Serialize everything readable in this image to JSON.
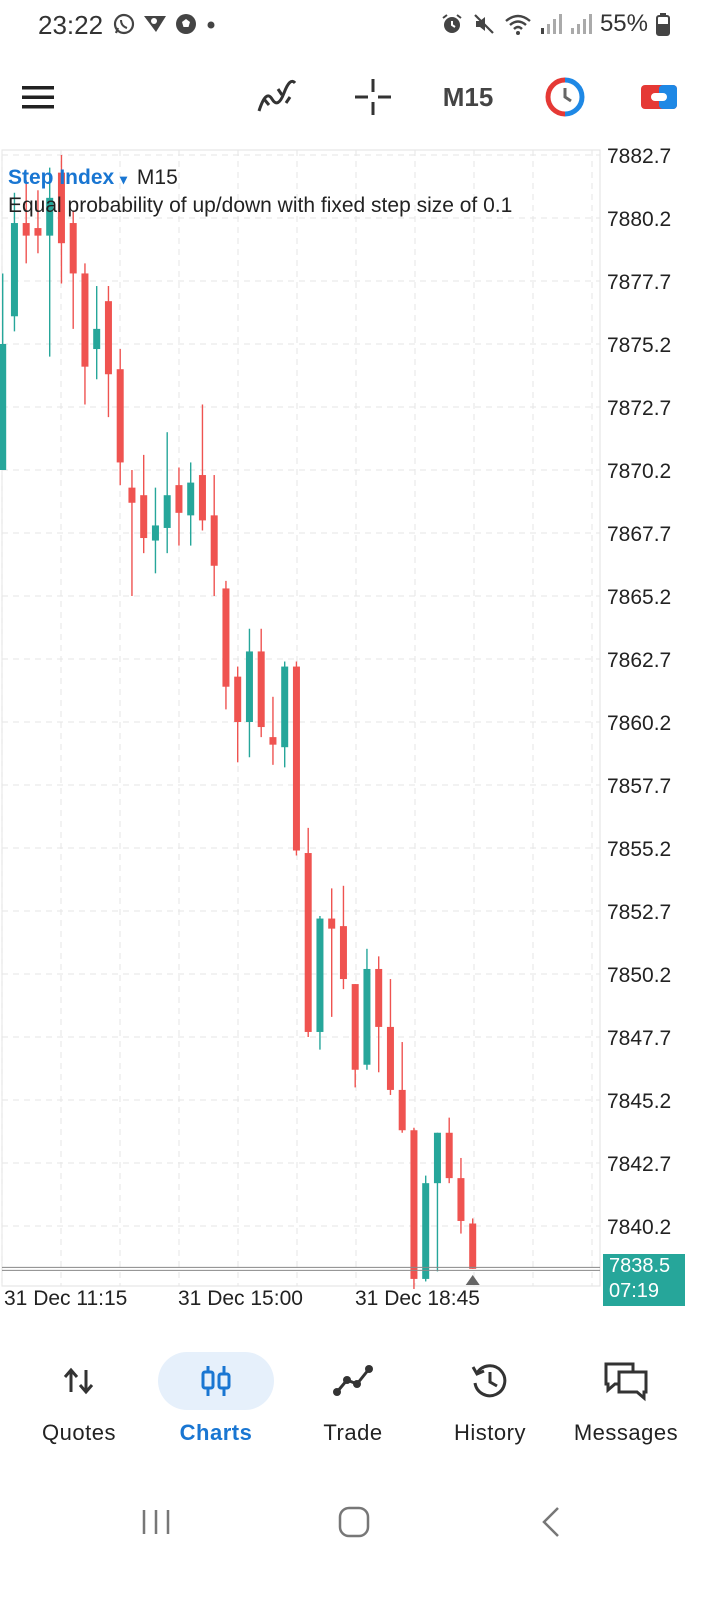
{
  "status_bar": {
    "time": "23:22",
    "battery": "55%"
  },
  "toolbar": {
    "timeframe": "M15",
    "icons": [
      "menu-icon",
      "indicators-icon",
      "crosshair-icon",
      "timeframe-button",
      "one-click-trading-icon",
      "account-icon"
    ]
  },
  "chart": {
    "symbol": "Step Index",
    "dropdown_glyph": "▾",
    "timeframe": "M15",
    "description": "Equal probability of up/down with fixed step size of 0.1",
    "current_price": "7838.5",
    "bar_timer": "07:19",
    "colors": {
      "up": "#26a69a",
      "down": "#ef5350",
      "grid": "#e6e6e6"
    }
  },
  "chart_data": {
    "type": "candlestick",
    "x_tick_labels": [
      "31 Dec 11:15",
      "31 Dec 15:00",
      "31 Dec 18:45"
    ],
    "y_tick_labels": [
      "7882.7",
      "7880.2",
      "7877.7",
      "7875.2",
      "7872.7",
      "7870.2",
      "7867.7",
      "7865.2",
      "7862.7",
      "7860.2",
      "7857.7",
      "7855.2",
      "7852.7",
      "7850.2",
      "7847.7",
      "7845.2",
      "7842.7",
      "7840.2"
    ],
    "ylim": [
      7837.5,
      7883.6
    ],
    "last_price": 7838.5,
    "candles": [
      {
        "o": 7870.2,
        "h": 7878.0,
        "l": 7870.2,
        "c": 7875.2
      },
      {
        "o": 7876.3,
        "h": 7881.2,
        "l": 7875.7,
        "c": 7880.0
      },
      {
        "o": 7880.0,
        "h": 7881.7,
        "l": 7878.4,
        "c": 7879.5
      },
      {
        "o": 7879.8,
        "h": 7881.3,
        "l": 7878.8,
        "c": 7879.5
      },
      {
        "o": 7879.5,
        "h": 7882.2,
        "l": 7874.7,
        "c": 7881.0
      },
      {
        "o": 7882.0,
        "h": 7882.7,
        "l": 7877.6,
        "c": 7879.2
      },
      {
        "o": 7880.0,
        "h": 7880.5,
        "l": 7875.8,
        "c": 7878.0
      },
      {
        "o": 7878.0,
        "h": 7878.4,
        "l": 7872.8,
        "c": 7874.3
      },
      {
        "o": 7875.0,
        "h": 7877.5,
        "l": 7873.8,
        "c": 7875.8
      },
      {
        "o": 7876.9,
        "h": 7877.5,
        "l": 7872.3,
        "c": 7874.0
      },
      {
        "o": 7874.2,
        "h": 7875.0,
        "l": 7869.6,
        "c": 7870.5
      },
      {
        "o": 7869.5,
        "h": 7870.2,
        "l": 7865.2,
        "c": 7868.9
      },
      {
        "o": 7869.2,
        "h": 7870.8,
        "l": 7866.9,
        "c": 7867.5
      },
      {
        "o": 7867.4,
        "h": 7869.5,
        "l": 7866.1,
        "c": 7868.0
      },
      {
        "o": 7867.9,
        "h": 7871.7,
        "l": 7866.9,
        "c": 7869.2
      },
      {
        "o": 7869.6,
        "h": 7870.3,
        "l": 7867.2,
        "c": 7868.5
      },
      {
        "o": 7868.4,
        "h": 7870.5,
        "l": 7867.2,
        "c": 7869.7
      },
      {
        "o": 7870.0,
        "h": 7872.8,
        "l": 7867.8,
        "c": 7868.2
      },
      {
        "o": 7868.4,
        "h": 7870.0,
        "l": 7865.2,
        "c": 7866.4
      },
      {
        "o": 7865.5,
        "h": 7865.8,
        "l": 7860.7,
        "c": 7861.6
      },
      {
        "o": 7862.0,
        "h": 7862.4,
        "l": 7858.6,
        "c": 7860.2
      },
      {
        "o": 7860.2,
        "h": 7863.9,
        "l": 7858.8,
        "c": 7863.0
      },
      {
        "o": 7863.0,
        "h": 7863.9,
        "l": 7859.6,
        "c": 7860.0
      },
      {
        "o": 7859.6,
        "h": 7861.2,
        "l": 7858.5,
        "c": 7859.3
      },
      {
        "o": 7859.2,
        "h": 7862.6,
        "l": 7858.4,
        "c": 7862.4
      },
      {
        "o": 7862.4,
        "h": 7862.6,
        "l": 7854.9,
        "c": 7855.1
      },
      {
        "o": 7855.0,
        "h": 7856.0,
        "l": 7847.7,
        "c": 7847.9
      },
      {
        "o": 7847.9,
        "h": 7852.5,
        "l": 7847.2,
        "c": 7852.4
      },
      {
        "o": 7852.4,
        "h": 7853.6,
        "l": 7848.5,
        "c": 7852.0
      },
      {
        "o": 7852.1,
        "h": 7853.7,
        "l": 7849.6,
        "c": 7850.0
      },
      {
        "o": 7849.8,
        "h": 7849.8,
        "l": 7845.7,
        "c": 7846.4
      },
      {
        "o": 7846.6,
        "h": 7851.2,
        "l": 7846.4,
        "c": 7850.4
      },
      {
        "o": 7850.4,
        "h": 7850.9,
        "l": 7846.3,
        "c": 7848.1
      },
      {
        "o": 7848.1,
        "h": 7850.0,
        "l": 7845.4,
        "c": 7845.6
      },
      {
        "o": 7845.6,
        "h": 7847.5,
        "l": 7843.9,
        "c": 7844.0
      },
      {
        "o": 7844.0,
        "h": 7844.1,
        "l": 7837.7,
        "c": 7838.1
      },
      {
        "o": 7838.1,
        "h": 7842.2,
        "l": 7838.0,
        "c": 7841.9
      },
      {
        "o": 7841.9,
        "h": 7843.9,
        "l": 7838.4,
        "c": 7843.9
      },
      {
        "o": 7843.9,
        "h": 7844.5,
        "l": 7841.9,
        "c": 7842.1
      },
      {
        "o": 7842.1,
        "h": 7842.9,
        "l": 7839.9,
        "c": 7840.4
      },
      {
        "o": 7840.3,
        "h": 7840.5,
        "l": 7838.5,
        "c": 7838.5
      }
    ]
  },
  "bottom_nav": {
    "items": [
      {
        "label": "Quotes"
      },
      {
        "label": "Charts"
      },
      {
        "label": "Trade"
      },
      {
        "label": "History"
      },
      {
        "label": "Messages"
      }
    ],
    "active": "Charts"
  }
}
